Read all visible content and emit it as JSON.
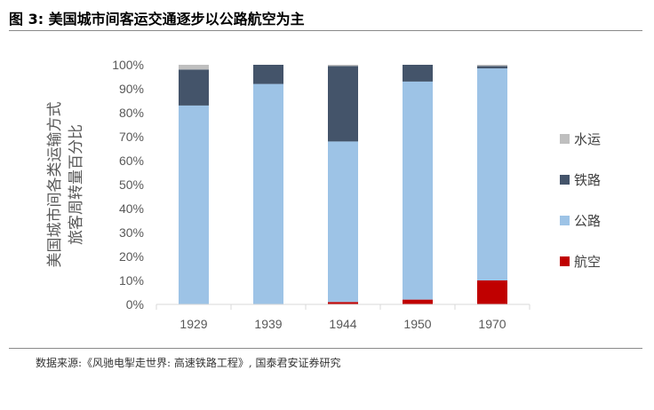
{
  "figure": {
    "title": "图 3:  美国城市间客运交通逐步以公路航空为主",
    "source": "数据来源:《风驰电掣走世界: 高速铁路工程》, 国泰君安证券研究"
  },
  "chart_data": {
    "type": "bar",
    "stacked": true,
    "ylabel_lines": [
      "美国城市间各类运输方式",
      "旅客周转量百分比"
    ],
    "xlabel": "",
    "categories": [
      "1929",
      "1939",
      "1944",
      "1950",
      "1970"
    ],
    "ylim": [
      0,
      1
    ],
    "yticks": [
      "0%",
      "10%",
      "20%",
      "30%",
      "40%",
      "50%",
      "60%",
      "70%",
      "80%",
      "90%",
      "100%"
    ],
    "series": [
      {
        "name": "航空",
        "color": "#c00000",
        "values": [
          0.0,
          0.0,
          0.01,
          0.02,
          0.1
        ]
      },
      {
        "name": "公路",
        "color": "#9dc3e6",
        "values": [
          0.83,
          0.92,
          0.67,
          0.91,
          0.885
        ]
      },
      {
        "name": "铁路",
        "color": "#44546a",
        "values": [
          0.15,
          0.08,
          0.315,
          0.07,
          0.01
        ]
      },
      {
        "name": "水运",
        "color": "#bfbfbf",
        "values": [
          0.02,
          0.0,
          0.005,
          0.0,
          0.005
        ]
      }
    ],
    "legend_position": "right",
    "grid": false
  }
}
